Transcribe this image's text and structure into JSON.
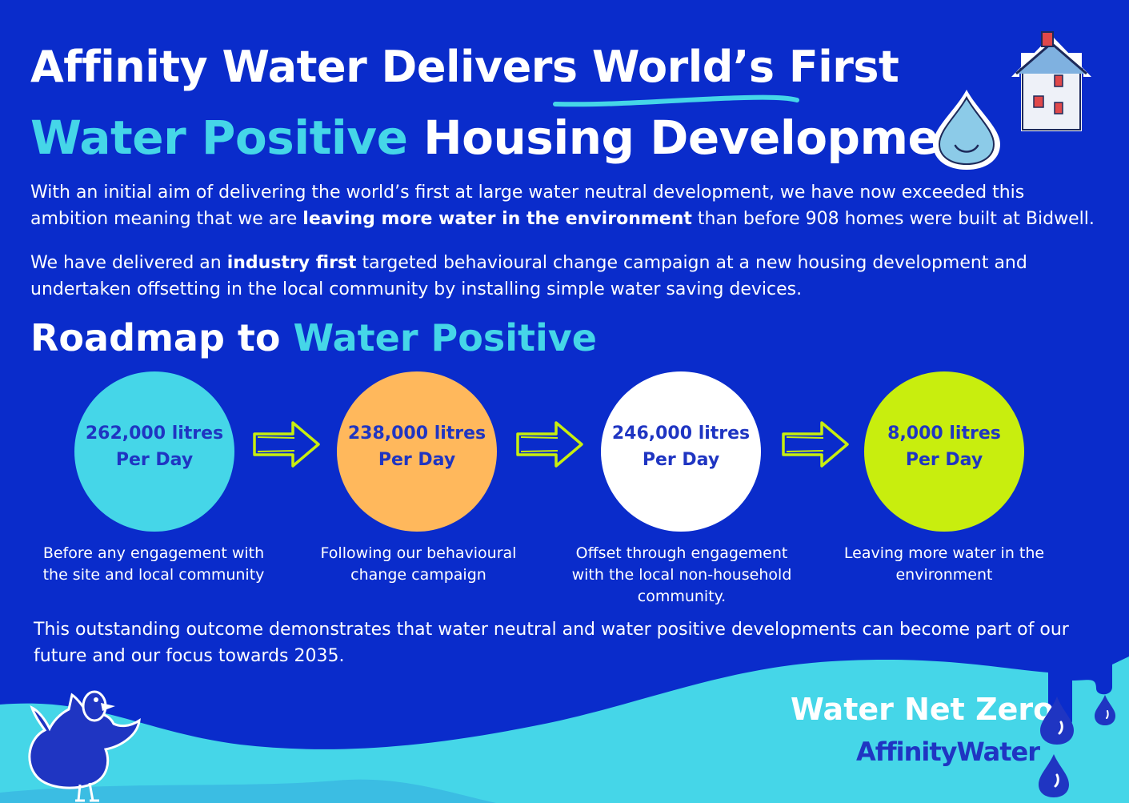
{
  "header": {
    "title_part1": "Affinity Water Delivers ",
    "title_highlight": "World’s First",
    "title_accent": "Water Positive",
    "title_part2": " Housing Development"
  },
  "intro": {
    "p1_a": "With an initial aim of delivering the world’s first at large water neutral development, we have now exceeded this ambition meaning that we are ",
    "p1_bold": "leaving more water in the environment",
    "p1_b": " than before 908 homes were built at Bidwell.",
    "p2_a": "We have delivered an ",
    "p2_bold": "industry first",
    "p2_b": " targeted behavioural change campaign at a new housing development and undertaken offsetting in the local community by installing simple water saving devices."
  },
  "roadmap": {
    "title_part1": "Roadmap to ",
    "title_accent": "Water Positive",
    "steps": [
      {
        "value": "262,000 litres",
        "unit": "Per Day",
        "caption": "Before any engagement with the site and local community",
        "color": "#45d6e8"
      },
      {
        "value": "238,000 litres",
        "unit": "Per Day",
        "caption": "Following our behavioural change campaign",
        "color": "#ffb85c"
      },
      {
        "value": "246,000 litres",
        "unit": "Per Day",
        "caption": "Offset through engagement with the local non-household community.",
        "color": "#ffffff"
      },
      {
        "value": "8,000 litres",
        "unit": "Per Day",
        "caption": "Leaving more water in the environment",
        "color": "#c8ee0e"
      }
    ]
  },
  "closing": "This outstanding outcome demonstrates that water neutral and water positive developments can become part of our future and our focus towards 2035.",
  "footer": {
    "tagline": "Water Net Zero",
    "brand": "AffinityWater"
  },
  "colors": {
    "background": "#0a2ccb",
    "cyan": "#45d6e8",
    "orange": "#ffb85c",
    "lime": "#c8ee0e",
    "brand_blue": "#1f35c2"
  },
  "icons": [
    "house-icon",
    "water-drop-smiley-icon",
    "duck-mascot-icon",
    "arrow-right-icon",
    "drip-drop-icon"
  ]
}
